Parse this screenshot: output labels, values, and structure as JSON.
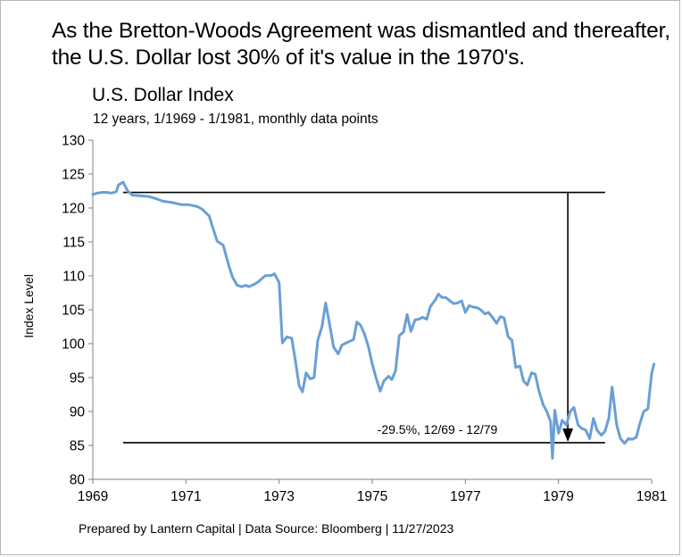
{
  "headline": "As the Bretton-Woods Agreement was dismantled and thereafter, the U.S. Dollar lost 30% of it's value in the 1970's.",
  "footer": "Prepared by Lantern Capital | Data Source: Bloomberg | 11/27/2023",
  "chart_data": {
    "type": "line",
    "title": "U.S. Dollar Index",
    "subtitle": "12 years, 1/1969 - 1/1981, monthly data points",
    "xlabel": "",
    "ylabel": "Index Level",
    "xlim": [
      1969,
      1981
    ],
    "ylim": [
      80,
      130
    ],
    "x_ticks": [
      "1969",
      "1971",
      "1973",
      "1975",
      "1977",
      "1979",
      "1981"
    ],
    "y_ticks": [
      "80",
      "85",
      "90",
      "95",
      "100",
      "105",
      "110",
      "115",
      "120",
      "125",
      "130"
    ],
    "grid": false,
    "line_color": "#6a9fd6",
    "series": [
      {
        "name": "",
        "points": [
          [
            1969.0,
            122.0
          ],
          [
            1969.1,
            122.2
          ],
          [
            1969.2,
            122.3
          ],
          [
            1969.3,
            122.3
          ],
          [
            1969.4,
            122.2
          ],
          [
            1969.5,
            122.4
          ],
          [
            1969.55,
            123.4
          ],
          [
            1969.65,
            123.8
          ],
          [
            1969.75,
            122.5
          ],
          [
            1969.85,
            121.9
          ],
          [
            1970.0,
            121.8
          ],
          [
            1970.2,
            121.7
          ],
          [
            1970.35,
            121.4
          ],
          [
            1970.5,
            121.0
          ],
          [
            1970.7,
            120.8
          ],
          [
            1970.9,
            120.5
          ],
          [
            1971.05,
            120.5
          ],
          [
            1971.25,
            120.2
          ],
          [
            1971.35,
            119.8
          ],
          [
            1971.5,
            118.8
          ],
          [
            1971.58,
            117.0
          ],
          [
            1971.67,
            115.1
          ],
          [
            1971.8,
            114.5
          ],
          [
            1971.92,
            111.5
          ],
          [
            1972.0,
            109.8
          ],
          [
            1972.1,
            108.6
          ],
          [
            1972.2,
            108.4
          ],
          [
            1972.28,
            108.6
          ],
          [
            1972.35,
            108.4
          ],
          [
            1972.45,
            108.7
          ],
          [
            1972.55,
            109.1
          ],
          [
            1972.7,
            110.0
          ],
          [
            1972.85,
            110.1
          ],
          [
            1972.9,
            110.3
          ],
          [
            1973.0,
            109.0
          ],
          [
            1973.07,
            100.1
          ],
          [
            1973.17,
            101.0
          ],
          [
            1973.27,
            100.8
          ],
          [
            1973.35,
            97.5
          ],
          [
            1973.43,
            93.8
          ],
          [
            1973.5,
            92.9
          ],
          [
            1973.58,
            95.7
          ],
          [
            1973.67,
            94.8
          ],
          [
            1973.75,
            95.0
          ],
          [
            1973.83,
            100.5
          ],
          [
            1973.92,
            102.5
          ],
          [
            1974.0,
            106.0
          ],
          [
            1974.08,
            103.0
          ],
          [
            1974.17,
            99.5
          ],
          [
            1974.27,
            98.5
          ],
          [
            1974.35,
            99.8
          ],
          [
            1974.5,
            100.3
          ],
          [
            1974.6,
            100.6
          ],
          [
            1974.67,
            103.2
          ],
          [
            1974.75,
            102.7
          ],
          [
            1974.83,
            101.5
          ],
          [
            1974.92,
            99.5
          ],
          [
            1975.0,
            97.0
          ],
          [
            1975.08,
            95.0
          ],
          [
            1975.17,
            93.0
          ],
          [
            1975.25,
            94.5
          ],
          [
            1975.35,
            95.2
          ],
          [
            1975.42,
            94.7
          ],
          [
            1975.5,
            96.0
          ],
          [
            1975.58,
            101.2
          ],
          [
            1975.67,
            101.7
          ],
          [
            1975.75,
            104.3
          ],
          [
            1975.83,
            101.8
          ],
          [
            1975.92,
            103.5
          ],
          [
            1976.0,
            103.6
          ],
          [
            1976.08,
            103.9
          ],
          [
            1976.17,
            103.6
          ],
          [
            1976.25,
            105.5
          ],
          [
            1976.35,
            106.4
          ],
          [
            1976.42,
            107.3
          ],
          [
            1976.5,
            106.8
          ],
          [
            1976.58,
            106.8
          ],
          [
            1976.67,
            106.3
          ],
          [
            1976.75,
            105.9
          ],
          [
            1976.83,
            106.0
          ],
          [
            1976.92,
            106.3
          ],
          [
            1977.0,
            104.6
          ],
          [
            1977.08,
            105.6
          ],
          [
            1977.17,
            105.4
          ],
          [
            1977.25,
            105.3
          ],
          [
            1977.33,
            105.0
          ],
          [
            1977.42,
            104.4
          ],
          [
            1977.5,
            104.6
          ],
          [
            1977.58,
            103.9
          ],
          [
            1977.67,
            103.0
          ],
          [
            1977.75,
            104.0
          ],
          [
            1977.83,
            103.8
          ],
          [
            1977.92,
            101.0
          ],
          [
            1978.0,
            100.5
          ],
          [
            1978.08,
            96.5
          ],
          [
            1978.17,
            96.7
          ],
          [
            1978.25,
            94.5
          ],
          [
            1978.33,
            93.9
          ],
          [
            1978.42,
            95.7
          ],
          [
            1978.5,
            95.5
          ],
          [
            1978.58,
            93.0
          ],
          [
            1978.67,
            91.0
          ],
          [
            1978.75,
            90.0
          ],
          [
            1978.83,
            88.5
          ],
          [
            1978.87,
            83.1
          ],
          [
            1978.92,
            90.2
          ],
          [
            1979.0,
            86.8
          ],
          [
            1979.08,
            88.7
          ],
          [
            1979.17,
            88.0
          ],
          [
            1979.25,
            90.0
          ],
          [
            1979.33,
            90.6
          ],
          [
            1979.42,
            88.0
          ],
          [
            1979.5,
            87.5
          ],
          [
            1979.58,
            87.3
          ],
          [
            1979.67,
            86.0
          ],
          [
            1979.75,
            89.0
          ],
          [
            1979.83,
            87.2
          ],
          [
            1979.92,
            86.5
          ],
          [
            1980.0,
            87.1
          ],
          [
            1980.08,
            89.0
          ],
          [
            1980.15,
            93.6
          ],
          [
            1980.25,
            88.0
          ],
          [
            1980.33,
            86.0
          ],
          [
            1980.42,
            85.3
          ],
          [
            1980.5,
            86.0
          ],
          [
            1980.58,
            85.9
          ],
          [
            1980.67,
            86.2
          ],
          [
            1980.75,
            88.3
          ],
          [
            1980.83,
            90.0
          ],
          [
            1980.92,
            90.4
          ],
          [
            1981.0,
            95.6
          ],
          [
            1981.05,
            97.0
          ]
        ]
      }
    ],
    "annotation": {
      "text": "-29.5%, 12/69 - 12/79",
      "upper_level": 122.3,
      "lower_level": 85.4,
      "upper_line_x": [
        1969.65,
        1980.0
      ],
      "lower_line_x": [
        1969.65,
        1980.0
      ],
      "arrow_x": 1979.2
    }
  }
}
